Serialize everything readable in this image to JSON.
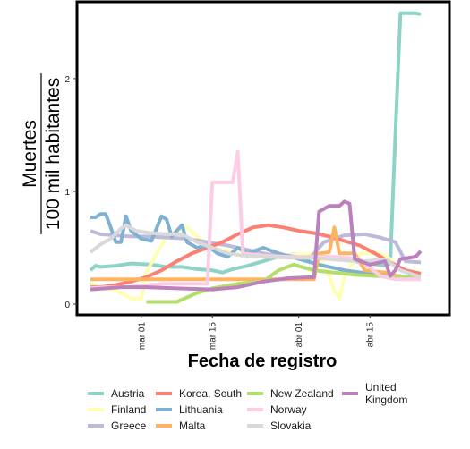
{
  "chart_data": {
    "type": "line",
    "xlabel": "Fecha de registro",
    "ylabel_numerator": "Muertes",
    "ylabel_denominator": "100 mil habitantes",
    "x_ticks": [
      "mar 01",
      "mar 15",
      "abr 01",
      "abr 15"
    ],
    "y_ticks": [
      "0",
      "1",
      "2"
    ],
    "ylim": [
      0,
      2.65
    ],
    "xlim": [
      "2020-02-20",
      "2020-04-28"
    ],
    "grid": false,
    "legend_position": "bottom",
    "series": [
      {
        "name": "Austria",
        "color": "#8dd3c7",
        "points": [
          [
            "2020-02-20",
            0.3
          ],
          [
            "2020-02-21",
            0.34
          ],
          [
            "2020-02-22",
            0.33
          ],
          [
            "2020-02-25",
            0.34
          ],
          [
            "2020-02-28",
            0.36
          ],
          [
            "2020-03-03",
            0.35
          ],
          [
            "2020-03-06",
            0.33
          ],
          [
            "2020-03-09",
            0.33
          ],
          [
            "2020-03-12",
            0.31
          ],
          [
            "2020-03-15",
            0.3
          ],
          [
            "2020-03-17",
            0.28
          ],
          [
            "2020-03-19",
            0.31
          ],
          [
            "2020-03-22",
            0.34
          ],
          [
            "2020-03-25",
            0.38
          ],
          [
            "2020-03-28",
            0.42
          ],
          [
            "2020-03-31",
            0.44
          ],
          [
            "2020-04-03",
            0.43
          ],
          [
            "2020-04-06",
            0.42
          ],
          [
            "2020-04-09",
            0.4
          ],
          [
            "2020-04-12",
            0.38
          ],
          [
            "2020-04-15",
            0.36
          ],
          [
            "2020-04-18",
            0.34
          ],
          [
            "2020-04-19",
            0.36
          ],
          [
            "2020-04-20",
            1.5
          ],
          [
            "2020-04-21",
            2.58
          ],
          [
            "2020-04-24",
            2.58
          ],
          [
            "2020-04-25",
            2.57
          ]
        ]
      },
      {
        "name": "Finland",
        "color": "#ffffb3",
        "points": [
          [
            "2020-02-20",
            0.18
          ],
          [
            "2020-02-23",
            0.14
          ],
          [
            "2020-02-26",
            0.1
          ],
          [
            "2020-02-28",
            0.05
          ],
          [
            "2020-03-01",
            0.05
          ],
          [
            "2020-03-02",
            0.28
          ],
          [
            "2020-03-04",
            0.45
          ],
          [
            "2020-03-06",
            0.6
          ],
          [
            "2020-03-08",
            0.65
          ],
          [
            "2020-03-10",
            0.68
          ],
          [
            "2020-03-12",
            0.6
          ],
          [
            "2020-03-15",
            0.5
          ],
          [
            "2020-03-20",
            0.45
          ],
          [
            "2020-03-26",
            0.42
          ],
          [
            "2020-04-01",
            0.44
          ],
          [
            "2020-04-05",
            0.45
          ],
          [
            "2020-04-07",
            0.25
          ],
          [
            "2020-04-08",
            0.12
          ],
          [
            "2020-04-09",
            0.05
          ],
          [
            "2020-04-10",
            0.25
          ],
          [
            "2020-04-13",
            0.45
          ],
          [
            "2020-04-17",
            0.45
          ],
          [
            "2020-04-19",
            0.4
          ],
          [
            "2020-04-21",
            0.3
          ],
          [
            "2020-04-25",
            0.28
          ]
        ]
      },
      {
        "name": "Greece",
        "color": "#bebada",
        "points": [
          [
            "2020-02-20",
            0.65
          ],
          [
            "2020-02-22",
            0.62
          ],
          [
            "2020-02-25",
            0.61
          ],
          [
            "2020-02-28",
            0.6
          ],
          [
            "2020-03-02",
            0.6
          ],
          [
            "2020-03-06",
            0.59
          ],
          [
            "2020-03-10",
            0.58
          ],
          [
            "2020-03-14",
            0.55
          ],
          [
            "2020-03-18",
            0.52
          ],
          [
            "2020-03-22",
            0.48
          ],
          [
            "2020-03-26",
            0.44
          ],
          [
            "2020-03-30",
            0.43
          ],
          [
            "2020-04-03",
            0.4
          ],
          [
            "2020-04-06",
            0.55
          ],
          [
            "2020-04-10",
            0.61
          ],
          [
            "2020-04-14",
            0.62
          ],
          [
            "2020-04-17",
            0.59
          ],
          [
            "2020-04-20",
            0.55
          ],
          [
            "2020-04-22",
            0.38
          ],
          [
            "2020-04-25",
            0.37
          ]
        ]
      },
      {
        "name": "Korea, South",
        "color": "#fb8072",
        "points": [
          [
            "2020-02-20",
            0.15
          ],
          [
            "2020-02-22",
            0.15
          ],
          [
            "2020-02-25",
            0.17
          ],
          [
            "2020-02-28",
            0.2
          ],
          [
            "2020-03-02",
            0.24
          ],
          [
            "2020-03-05",
            0.3
          ],
          [
            "2020-03-08",
            0.38
          ],
          [
            "2020-03-11",
            0.45
          ],
          [
            "2020-03-14",
            0.5
          ],
          [
            "2020-03-17",
            0.55
          ],
          [
            "2020-03-20",
            0.62
          ],
          [
            "2020-03-23",
            0.68
          ],
          [
            "2020-03-26",
            0.7
          ],
          [
            "2020-03-29",
            0.68
          ],
          [
            "2020-04-01",
            0.65
          ],
          [
            "2020-04-04",
            0.63
          ],
          [
            "2020-04-07",
            0.6
          ],
          [
            "2020-04-10",
            0.56
          ],
          [
            "2020-04-13",
            0.52
          ],
          [
            "2020-04-16",
            0.45
          ],
          [
            "2020-04-19",
            0.37
          ],
          [
            "2020-04-22",
            0.3
          ],
          [
            "2020-04-25",
            0.27
          ]
        ]
      },
      {
        "name": "Lithuania",
        "color": "#80b1d3",
        "points": [
          [
            "2020-02-20",
            0.77
          ],
          [
            "2020-02-21",
            0.77
          ],
          [
            "2020-02-22",
            0.8
          ],
          [
            "2020-02-23",
            0.8
          ],
          [
            "2020-02-24",
            0.68
          ],
          [
            "2020-02-25",
            0.55
          ],
          [
            "2020-02-26",
            0.55
          ],
          [
            "2020-02-27",
            0.78
          ],
          [
            "2020-02-28",
            0.65
          ],
          [
            "2020-03-01",
            0.58
          ],
          [
            "2020-03-03",
            0.56
          ],
          [
            "2020-03-05",
            0.78
          ],
          [
            "2020-03-06",
            0.75
          ],
          [
            "2020-03-07",
            0.6
          ],
          [
            "2020-03-09",
            0.7
          ],
          [
            "2020-03-10",
            0.55
          ],
          [
            "2020-03-12",
            0.5
          ],
          [
            "2020-03-14",
            0.52
          ],
          [
            "2020-03-16",
            0.45
          ],
          [
            "2020-03-18",
            0.42
          ],
          [
            "2020-03-20",
            0.5
          ],
          [
            "2020-03-22",
            0.45
          ],
          [
            "2020-03-25",
            0.5
          ],
          [
            "2020-03-28",
            0.45
          ],
          [
            "2020-04-01",
            0.4
          ],
          [
            "2020-04-05",
            0.35
          ],
          [
            "2020-04-10",
            0.3
          ],
          [
            "2020-04-15",
            0.27
          ],
          [
            "2020-04-20",
            0.25
          ],
          [
            "2020-04-25",
            0.24
          ]
        ]
      },
      {
        "name": "Malta",
        "color": "#fdb462",
        "points": [
          [
            "2020-02-20",
            0.22
          ],
          [
            "2020-03-10",
            0.22
          ],
          [
            "2020-03-25",
            0.22
          ],
          [
            "2020-04-04",
            0.22
          ],
          [
            "2020-04-05",
            0.45
          ],
          [
            "2020-04-07",
            0.46
          ],
          [
            "2020-04-08",
            0.68
          ],
          [
            "2020-04-09",
            0.45
          ],
          [
            "2020-04-12",
            0.45
          ],
          [
            "2020-04-14",
            0.3
          ],
          [
            "2020-04-18",
            0.28
          ],
          [
            "2020-04-22",
            0.23
          ],
          [
            "2020-04-25",
            0.23
          ]
        ]
      },
      {
        "name": "New Zealand",
        "color": "#b3de69",
        "points": [
          [
            "2020-03-02",
            0.02
          ],
          [
            "2020-03-08",
            0.02
          ],
          [
            "2020-03-12",
            0.1
          ],
          [
            "2020-03-15",
            0.14
          ],
          [
            "2020-03-20",
            0.18
          ],
          [
            "2020-03-25",
            0.2
          ],
          [
            "2020-03-28",
            0.3
          ],
          [
            "2020-03-31",
            0.35
          ],
          [
            "2020-04-04",
            0.3
          ],
          [
            "2020-04-08",
            0.28
          ],
          [
            "2020-04-12",
            0.26
          ],
          [
            "2020-04-16",
            0.25
          ],
          [
            "2020-04-20",
            0.24
          ],
          [
            "2020-04-25",
            0.24
          ]
        ]
      },
      {
        "name": "Norway",
        "color": "#fccde5",
        "points": [
          [
            "2020-02-20",
            0.14
          ],
          [
            "2020-02-23",
            0.15
          ],
          [
            "2020-02-26",
            0.15
          ],
          [
            "2020-03-01",
            0.16
          ],
          [
            "2020-03-05",
            0.18
          ],
          [
            "2020-03-10",
            0.18
          ],
          [
            "2020-03-14",
            0.18
          ],
          [
            "2020-03-15",
            1.08
          ],
          [
            "2020-03-19",
            1.08
          ],
          [
            "2020-03-20",
            1.35
          ],
          [
            "2020-03-21",
            0.45
          ],
          [
            "2020-03-25",
            0.43
          ],
          [
            "2020-03-30",
            0.42
          ],
          [
            "2020-04-03",
            0.42
          ],
          [
            "2020-04-08",
            0.42
          ],
          [
            "2020-04-13",
            0.4
          ],
          [
            "2020-04-17",
            0.25
          ],
          [
            "2020-04-20",
            0.22
          ],
          [
            "2020-04-25",
            0.22
          ]
        ]
      },
      {
        "name": "Slovakia",
        "color": "#d9d9d9",
        "points": [
          [
            "2020-02-20",
            0.46
          ],
          [
            "2020-02-22",
            0.53
          ],
          [
            "2020-02-24",
            0.58
          ],
          [
            "2020-02-26",
            0.67
          ],
          [
            "2020-02-27",
            0.7
          ],
          [
            "2020-02-29",
            0.65
          ],
          [
            "2020-03-03",
            0.63
          ],
          [
            "2020-03-06",
            0.62
          ],
          [
            "2020-03-09",
            0.62
          ],
          [
            "2020-03-12",
            0.55
          ],
          [
            "2020-03-15",
            0.5
          ],
          [
            "2020-03-18",
            0.45
          ],
          [
            "2020-03-21",
            0.43
          ],
          [
            "2020-03-25",
            0.42
          ],
          [
            "2020-03-30",
            0.41
          ],
          [
            "2020-04-04",
            0.41
          ],
          [
            "2020-04-09",
            0.39
          ],
          [
            "2020-04-14",
            0.38
          ],
          [
            "2020-04-18",
            0.4
          ],
          [
            "2020-04-21",
            0.3
          ],
          [
            "2020-04-25",
            0.24
          ]
        ]
      },
      {
        "name": "United Kingdom",
        "color": "#bc80bd",
        "points": [
          [
            "2020-02-20",
            0.13
          ],
          [
            "2020-02-23",
            0.14
          ],
          [
            "2020-02-26",
            0.15
          ],
          [
            "2020-03-02",
            0.15
          ],
          [
            "2020-03-08",
            0.14
          ],
          [
            "2020-03-15",
            0.13
          ],
          [
            "2020-03-20",
            0.15
          ],
          [
            "2020-03-25",
            0.2
          ],
          [
            "2020-03-30",
            0.23
          ],
          [
            "2020-04-04",
            0.24
          ],
          [
            "2020-04-05",
            0.82
          ],
          [
            "2020-04-07",
            0.87
          ],
          [
            "2020-04-09",
            0.87
          ],
          [
            "2020-04-10",
            0.91
          ],
          [
            "2020-04-11",
            0.89
          ],
          [
            "2020-04-12",
            0.4
          ],
          [
            "2020-04-15",
            0.35
          ],
          [
            "2020-04-18",
            0.38
          ],
          [
            "2020-04-19",
            0.25
          ],
          [
            "2020-04-20",
            0.3
          ],
          [
            "2020-04-21",
            0.4
          ],
          [
            "2020-04-24",
            0.42
          ],
          [
            "2020-04-25",
            0.47
          ]
        ]
      }
    ]
  }
}
